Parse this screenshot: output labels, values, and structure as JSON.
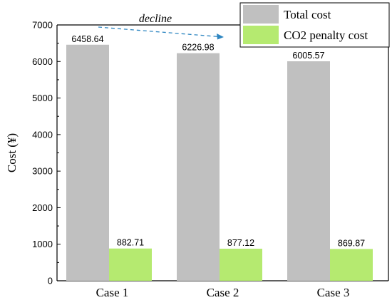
{
  "chart_data": {
    "type": "bar",
    "categories": [
      "Case 1",
      "Case 2",
      "Case 3"
    ],
    "series": [
      {
        "name": "Total cost",
        "values": [
          6458.64,
          6226.98,
          6005.57
        ],
        "color": "#c0c0c0"
      },
      {
        "name": "CO2 penalty cost",
        "values": [
          882.71,
          877.12,
          869.87
        ],
        "color": "#b5ea70"
      }
    ],
    "data_labels": [
      [
        "6458.64",
        "6226.98",
        "6005.57"
      ],
      [
        "882.71",
        "877.12",
        "869.87"
      ]
    ],
    "title": "",
    "xlabel": "",
    "ylabel": "Cost (¥)",
    "ylim": [
      0,
      7000
    ],
    "yticks": [
      0,
      1000,
      2000,
      3000,
      4000,
      5000,
      6000,
      7000
    ],
    "grid": false,
    "legend_position": "top-right",
    "annotation": {
      "text": "decline",
      "arrow_color": "#2e86c1"
    }
  }
}
